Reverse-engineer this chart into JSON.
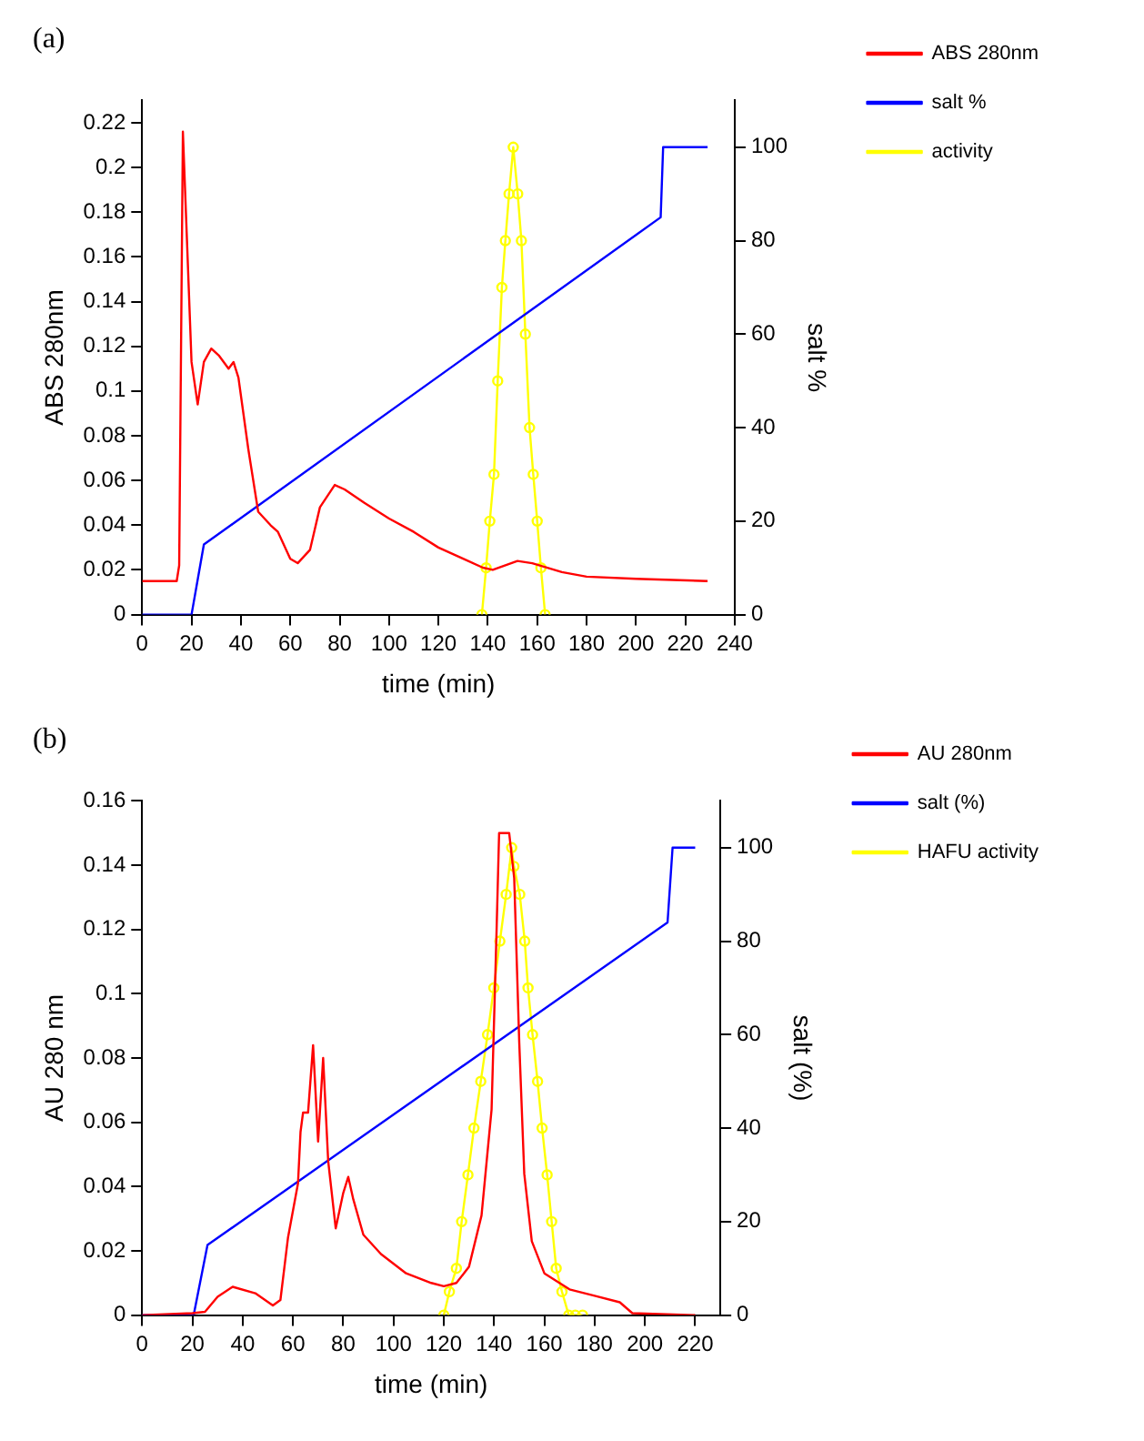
{
  "chart_data": [
    {
      "type": "line",
      "title": "(a)",
      "xlabel": "time (min)",
      "ylabel": "ABS 280nm",
      "y2label": "salt %",
      "xlim": [
        0,
        240
      ],
      "xticks": [
        0,
        20,
        40,
        60,
        80,
        100,
        120,
        140,
        160,
        180,
        200,
        220,
        240
      ],
      "ylim": [
        0,
        0.23
      ],
      "yticks": [
        0,
        0.02,
        0.04,
        0.06,
        0.08,
        0.1,
        0.12,
        0.14,
        0.16,
        0.18,
        0.2,
        0.22
      ],
      "y2lim": [
        0,
        110
      ],
      "y2ticks": [
        0,
        20,
        40,
        60,
        80,
        100
      ],
      "grid": false,
      "legend": "right",
      "series": [
        {
          "name": "ABS 280nm",
          "color": "#ff0000",
          "x": [
            0,
            14,
            15,
            16.5,
            20,
            22.5,
            25,
            28,
            31,
            35,
            37,
            39,
            43,
            47,
            52,
            55,
            60,
            63,
            68,
            72,
            78,
            82,
            90,
            100,
            110,
            120,
            130,
            138,
            142,
            152,
            158,
            170,
            180,
            200,
            229
          ],
          "values": [
            0.015,
            0.015,
            0.022,
            0.216,
            0.113,
            0.094,
            0.113,
            0.119,
            0.116,
            0.11,
            0.113,
            0.106,
            0.074,
            0.046,
            0.04,
            0.037,
            0.025,
            0.023,
            0.029,
            0.048,
            0.058,
            0.056,
            0.05,
            0.043,
            0.037,
            0.03,
            0.025,
            0.021,
            0.02,
            0.024,
            0.023,
            0.019,
            0.017,
            0.016,
            0.015
          ]
        },
        {
          "name": "salt %",
          "color": "#0000ff",
          "axis": "y2",
          "x": [
            0,
            20,
            25,
            210,
            211,
            229
          ],
          "values": [
            0,
            0,
            15,
            85,
            100,
            100
          ]
        },
        {
          "name": "activity",
          "color": "#ffff00",
          "axis": "y2",
          "marker": "circle",
          "x": [
            137.6,
            139.3,
            140.8,
            142.5,
            144,
            145.7,
            147.1,
            148.6,
            150.3,
            152.1,
            153.6,
            155.2,
            156.9,
            158.4,
            160,
            161.5,
            163.2
          ],
          "values": [
            0,
            10,
            20,
            30,
            50,
            70,
            80,
            90,
            100,
            90,
            80,
            60,
            40,
            30,
            20,
            10,
            0
          ]
        }
      ]
    },
    {
      "type": "line",
      "title": "(b)",
      "xlabel": "time (min)",
      "ylabel": "AU 280 nm",
      "y2label": "salt (%)",
      "xlim": [
        0,
        230
      ],
      "xticks": [
        0,
        20,
        40,
        60,
        80,
        100,
        120,
        140,
        160,
        180,
        200,
        220
      ],
      "ylim": [
        0,
        0.16
      ],
      "yticks": [
        0,
        0.02,
        0.04,
        0.06,
        0.08,
        0.1,
        0.12,
        0.14,
        0.16
      ],
      "y2lim": [
        0,
        110
      ],
      "y2ticks": [
        0,
        20,
        40,
        60,
        80,
        100
      ],
      "grid": false,
      "legend": "right",
      "series": [
        {
          "name": "AU 280nm",
          "color": "#ff0000",
          "x": [
            0,
            20,
            25,
            30,
            36,
            45,
            52,
            55,
            58,
            62,
            63,
            64,
            66,
            68,
            70,
            72,
            74,
            77,
            80,
            82,
            84,
            88,
            95,
            105,
            115,
            120,
            125,
            130,
            135,
            139,
            141,
            142,
            146,
            148,
            150,
            152,
            155,
            160,
            170,
            180,
            190,
            195,
            220
          ],
          "values": [
            0,
            0.0006,
            0.001,
            0.0057,
            0.0088,
            0.0068,
            0.003,
            0.0047,
            0.024,
            0.041,
            0.057,
            0.063,
            0.063,
            0.084,
            0.054,
            0.08,
            0.048,
            0.027,
            0.038,
            0.043,
            0.036,
            0.025,
            0.019,
            0.013,
            0.01,
            0.009,
            0.01,
            0.015,
            0.031,
            0.064,
            0.12,
            0.15,
            0.15,
            0.136,
            0.085,
            0.044,
            0.023,
            0.013,
            0.008,
            0.006,
            0.004,
            0.0006,
            0
          ]
        },
        {
          "name": "salt (%)",
          "color": "#0000ff",
          "axis": "y2",
          "x": [
            0,
            20.5,
            26,
            209,
            211,
            220
          ],
          "values": [
            0,
            0,
            15,
            84,
            100,
            100
          ]
        },
        {
          "name": "HAFU activity",
          "color": "#ffff00",
          "axis": "y2",
          "marker": "circle",
          "x": [
            120,
            122.2,
            125,
            127.1,
            129.6,
            132,
            134.7,
            137.4,
            139.9,
            142.3,
            144.8,
            147,
            147.9,
            150.2,
            152.2,
            153.5,
            155.3,
            157.3,
            159.1,
            161.1,
            162.9,
            164.7,
            167,
            169.7,
            172.3,
            175.2
          ],
          "values": [
            0,
            5,
            10,
            20,
            30,
            40,
            50,
            60,
            70,
            80,
            90,
            100,
            96,
            90,
            80,
            70,
            60,
            50,
            40,
            30,
            20,
            10,
            5,
            0,
            0,
            0
          ]
        }
      ]
    }
  ]
}
